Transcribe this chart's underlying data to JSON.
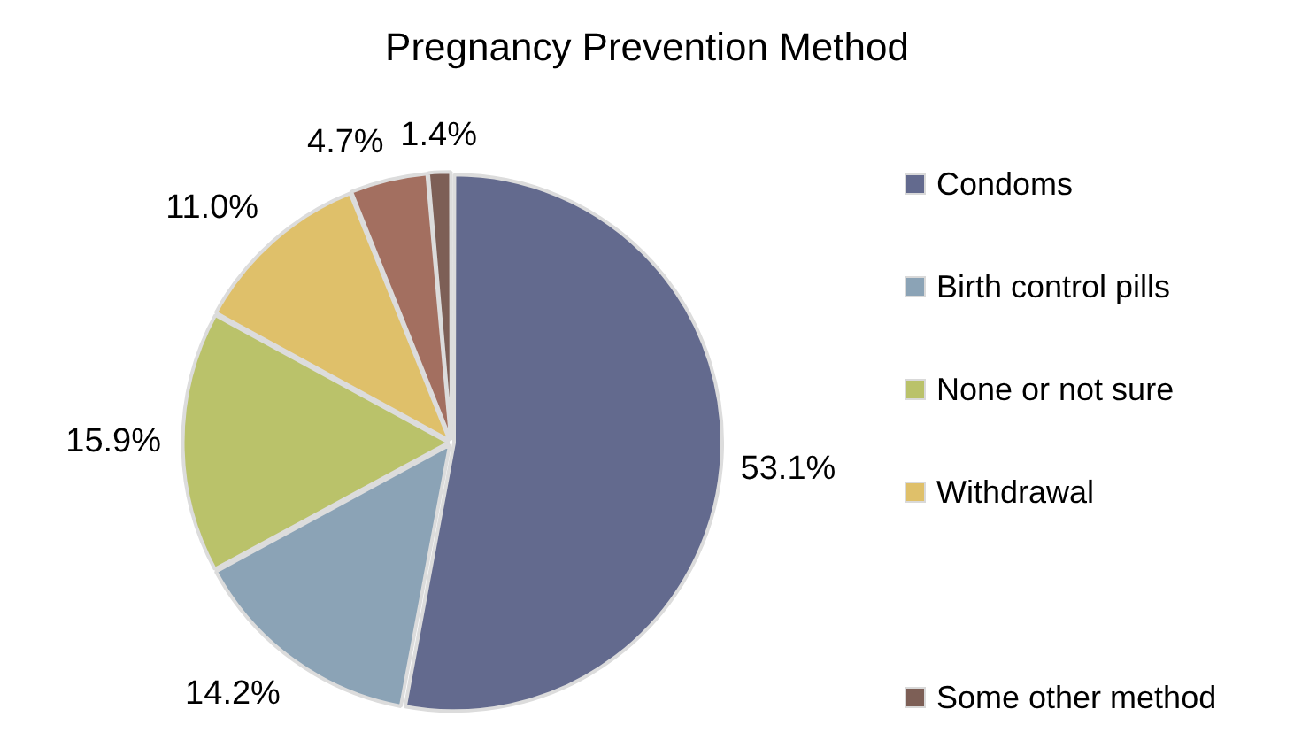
{
  "chart_data": {
    "type": "pie",
    "title": "Pregnancy Prevention Method",
    "categories": [
      "Condoms",
      "Birth control pills",
      "None or not sure",
      "Withdrawal",
      null,
      "Some other method"
    ],
    "values": [
      53.1,
      14.2,
      15.9,
      11.0,
      4.7,
      1.4
    ],
    "value_labels": [
      "53.1%",
      "14.2%",
      "15.9%",
      "11.0%",
      "4.7%",
      "1.4%"
    ],
    "colors": [
      "#636a8e",
      "#8ba3b6",
      "#bac26a",
      "#dfc06a",
      "#a36f60",
      "#7d5f56"
    ],
    "legend": "right"
  }
}
